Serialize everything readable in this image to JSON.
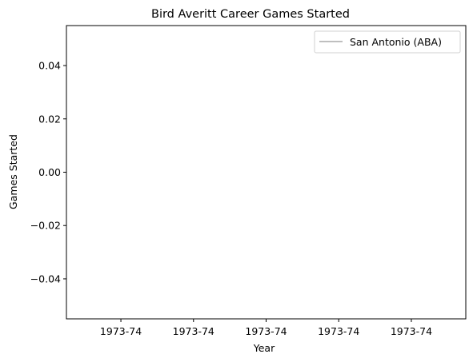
{
  "chart_data": {
    "type": "line",
    "title": "Bird Averitt Career Games Started",
    "xlabel": "Year",
    "ylabel": "Games Started",
    "x_tick_labels": [
      "1973-74",
      "1973-74",
      "1973-74",
      "1973-74",
      "1973-74"
    ],
    "y_tick_labels": [
      "0.04",
      "0.02",
      "0.00",
      "−0.02",
      "−0.04"
    ],
    "y_ticks": [
      0.04,
      0.02,
      0.0,
      -0.02,
      -0.04
    ],
    "ylim": [
      -0.055,
      0.055
    ],
    "series": [
      {
        "name": "San Antonio (ABA)",
        "x": [
          "1973-74"
        ],
        "values": [
          0
        ],
        "color": "#bfbfbf"
      }
    ],
    "legend_position": "top-right",
    "grid": false
  }
}
